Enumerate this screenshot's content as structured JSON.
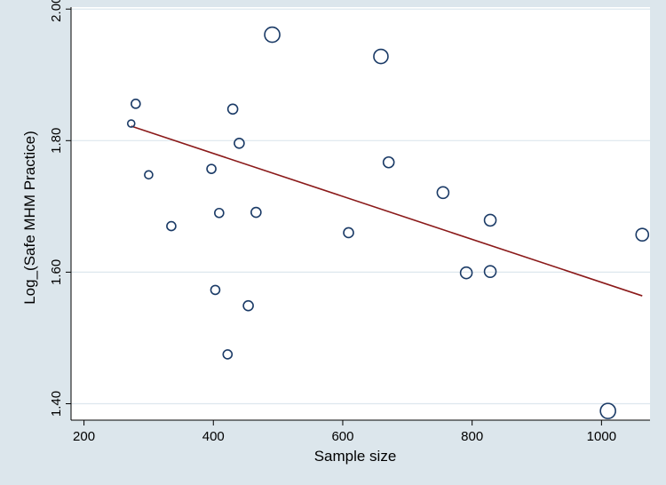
{
  "chart_data": {
    "type": "scatter",
    "title": "",
    "xlabel": "Sample size",
    "ylabel": "Log_(Safe MHM Practice)",
    "xlim": [
      180,
      1075
    ],
    "ylim": [
      1.375,
      2.003
    ],
    "x_ticks": [
      200,
      400,
      600,
      800,
      1000
    ],
    "x_tick_labels": [
      "200",
      "400",
      "600",
      "800",
      "1000"
    ],
    "y_ticks": [
      1.4,
      1.6,
      1.8,
      2.0
    ],
    "y_tick_labels": [
      "1.40",
      "1.60",
      "1.80",
      "2.00"
    ],
    "grid": "horizontal",
    "marker_size_note": "bubble size varies",
    "points": [
      {
        "x": 273,
        "y": 1.826,
        "size": 4
      },
      {
        "x": 280,
        "y": 1.856,
        "size": 5
      },
      {
        "x": 300,
        "y": 1.748,
        "size": 4.5
      },
      {
        "x": 335,
        "y": 1.67,
        "size": 5
      },
      {
        "x": 397,
        "y": 1.757,
        "size": 5
      },
      {
        "x": 403,
        "y": 1.573,
        "size": 5
      },
      {
        "x": 409,
        "y": 1.69,
        "size": 5
      },
      {
        "x": 422,
        "y": 1.475,
        "size": 5
      },
      {
        "x": 430,
        "y": 1.848,
        "size": 5.5
      },
      {
        "x": 440,
        "y": 1.796,
        "size": 5.5
      },
      {
        "x": 454,
        "y": 1.549,
        "size": 5.5
      },
      {
        "x": 466,
        "y": 1.691,
        "size": 5.5
      },
      {
        "x": 491,
        "y": 1.961,
        "size": 8.5
      },
      {
        "x": 609,
        "y": 1.66,
        "size": 5.5
      },
      {
        "x": 659,
        "y": 1.928,
        "size": 8
      },
      {
        "x": 671,
        "y": 1.767,
        "size": 6
      },
      {
        "x": 755,
        "y": 1.721,
        "size": 6.5
      },
      {
        "x": 791,
        "y": 1.599,
        "size": 6.5
      },
      {
        "x": 828,
        "y": 1.679,
        "size": 6.5
      },
      {
        "x": 828,
        "y": 1.601,
        "size": 6.5
      },
      {
        "x": 1010,
        "y": 1.389,
        "size": 8.5
      },
      {
        "x": 1063,
        "y": 1.657,
        "size": 7
      }
    ],
    "fit_line": {
      "type": "linear",
      "color": "#8b1a1a",
      "start": {
        "x": 273,
        "y": 1.822
      },
      "end": {
        "x": 1063,
        "y": 1.564
      }
    },
    "colors": {
      "background": "#dce6ec",
      "plot_area": "#ffffff",
      "marker_stroke": "#1a3a66",
      "grid": "#dde7ee"
    }
  }
}
